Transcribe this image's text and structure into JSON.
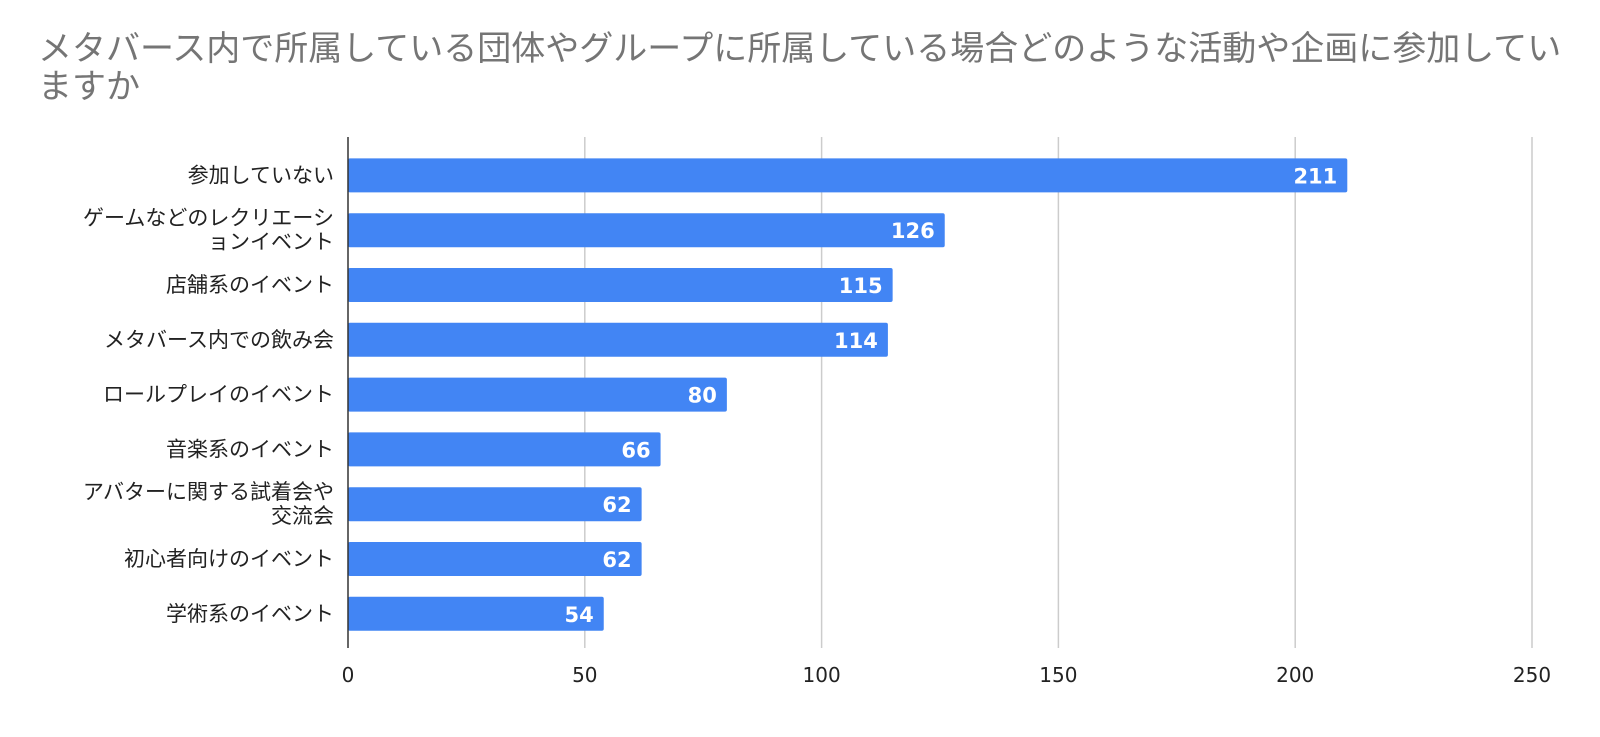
{
  "chart_data": {
    "type": "bar",
    "orientation": "horizontal",
    "title": "メタバース内で所属している団体やグループに所属している場合どのような活動や企画に参加していますか",
    "xlabel": "",
    "ylabel": "",
    "categories": [
      "参加していない",
      "ゲームなどのレクリエーションイベント",
      "店舗系のイベント",
      "メタバース内での飲み会",
      "ロールプレイのイベント",
      "音楽系のイベント",
      "アバターに関する試着会や交流会",
      "初心者向けのイベント",
      "学術系のイベント"
    ],
    "category_lines": [
      [
        "参加していない"
      ],
      [
        "ゲームなどのレクリエーシ",
        "ョンイベント"
      ],
      [
        "店舗系のイベント"
      ],
      [
        "メタバース内での飲み会"
      ],
      [
        "ロールプレイのイベント"
      ],
      [
        "音楽系のイベント"
      ],
      [
        "アバターに関する試着会や",
        "交流会"
      ],
      [
        "初心者向けのイベント"
      ],
      [
        "学術系のイベント"
      ]
    ],
    "values": [
      211,
      126,
      115,
      114,
      80,
      66,
      62,
      62,
      54
    ],
    "xlim": [
      0,
      250
    ],
    "xticks": [
      0,
      50,
      100,
      150,
      200,
      250
    ],
    "grid": true,
    "legend": "none",
    "bar_color": "#4285f4",
    "data_labels": true
  }
}
